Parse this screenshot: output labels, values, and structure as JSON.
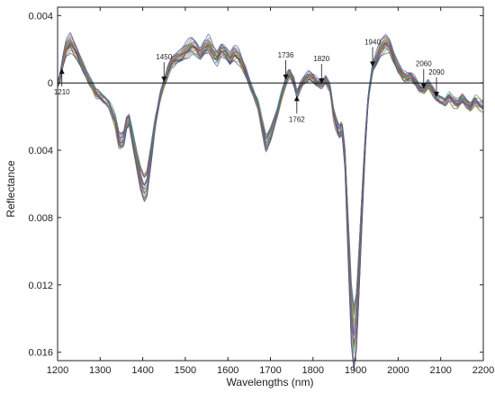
{
  "chart_data": {
    "type": "line",
    "xlabel": "Wavelengths (nm)",
    "ylabel": "Reflectance",
    "xlim": [
      1200,
      2200
    ],
    "ylim": [
      -0.0165,
      0.0045
    ],
    "x_ticks": [
      1200,
      1300,
      1400,
      1500,
      1600,
      1700,
      1800,
      1900,
      2000,
      2100,
      2200
    ],
    "y_ticks": [
      {
        "value": 0.004,
        "label": "0.004"
      },
      {
        "value": 0,
        "label": "0"
      },
      {
        "value": -0.004,
        "label": "0.004"
      },
      {
        "value": -0.008,
        "label": "0.008"
      },
      {
        "value": -0.012,
        "label": "0.012"
      },
      {
        "value": -0.016,
        "label": "0.016"
      }
    ],
    "grid": false,
    "baseline": 0,
    "annotations": [
      {
        "label": "1210",
        "x": 1210,
        "direction": "up"
      },
      {
        "label": "1450",
        "x": 1450,
        "direction": "down"
      },
      {
        "label": "1736",
        "x": 1736,
        "direction": "down"
      },
      {
        "label": "1762",
        "x": 1762,
        "direction": "up"
      },
      {
        "label": "1820",
        "x": 1820,
        "direction": "down"
      },
      {
        "label": "1940",
        "x": 1940,
        "direction": "down"
      },
      {
        "label": "2060",
        "x": 2060,
        "direction": "down"
      },
      {
        "label": "2090",
        "x": 2090,
        "direction": "down"
      }
    ],
    "series_colors": [
      "#1f3fbf",
      "#2e8b57",
      "#c0392b",
      "#8e44ad",
      "#e67e22",
      "#16a085",
      "#2c3e50",
      "#d4ac0d",
      "#7f8c8d",
      "#a0522d",
      "#3498db",
      "#6c3483"
    ],
    "mean_curve": {
      "x": [
        1200,
        1205,
        1212,
        1220,
        1230,
        1245,
        1260,
        1275,
        1290,
        1305,
        1320,
        1335,
        1345,
        1355,
        1362,
        1368,
        1375,
        1385,
        1395,
        1403,
        1410,
        1420,
        1430,
        1440,
        1450,
        1460,
        1470,
        1480,
        1490,
        1500,
        1515,
        1525,
        1535,
        1545,
        1555,
        1565,
        1575,
        1585,
        1595,
        1605,
        1615,
        1625,
        1640,
        1655,
        1670,
        1680,
        1690,
        1700,
        1715,
        1730,
        1738,
        1745,
        1755,
        1762,
        1770,
        1780,
        1790,
        1800,
        1810,
        1820,
        1830,
        1840,
        1848,
        1855,
        1862,
        1868,
        1875,
        1883,
        1890,
        1896,
        1902,
        1908,
        1915,
        1922,
        1930,
        1940,
        1950,
        1960,
        1970,
        1980,
        1990,
        2000,
        2010,
        2020,
        2030,
        2040,
        2050,
        2060,
        2070,
        2080,
        2090,
        2100,
        2110,
        2120,
        2130,
        2140,
        2150,
        2160,
        2170,
        2180,
        2190,
        2200
      ],
      "y": [
        0,
        0.0002,
        0.0012,
        0.0021,
        0.0024,
        0.0018,
        0.0009,
        0.0001,
        -0.0006,
        -0.0009,
        -0.0012,
        -0.0022,
        -0.0035,
        -0.0034,
        -0.0024,
        -0.0022,
        -0.0031,
        -0.0044,
        -0.0057,
        -0.0063,
        -0.006,
        -0.0042,
        -0.0022,
        -0.0009,
        0.0,
        0.0008,
        0.0013,
        0.0015,
        0.0016,
        0.0019,
        0.0022,
        0.0021,
        0.0017,
        0.0021,
        0.0023,
        0.0018,
        0.0015,
        0.002,
        0.0018,
        0.0014,
        0.0018,
        0.0016,
        0.0008,
        -0.0003,
        -0.0012,
        -0.0025,
        -0.0037,
        -0.0031,
        -0.0018,
        -0.0004,
        0.0003,
        0.0006,
        0.0001,
        -0.0007,
        -0.0002,
        0.0002,
        0.0004,
        0.0003,
        0.0,
        -0.0001,
        0.0002,
        -0.0003,
        -0.0018,
        -0.0025,
        -0.003,
        -0.0026,
        -0.0045,
        -0.0095,
        -0.0138,
        -0.0152,
        -0.0142,
        -0.0112,
        -0.0075,
        -0.0038,
        -0.0008,
        0.0009,
        0.0015,
        0.0021,
        0.0024,
        0.0022,
        0.0015,
        0.0009,
        0.0005,
        0.0003,
        0.0004,
        0.0001,
        -0.0003,
        -0.0004,
        -0.0001,
        -0.0004,
        -0.0009,
        -0.001,
        -0.0011,
        -0.0008,
        -0.0011,
        -0.0013,
        -0.0009,
        -0.0012,
        -0.0014,
        -0.001,
        -0.0013,
        -0.0014
      ]
    }
  }
}
